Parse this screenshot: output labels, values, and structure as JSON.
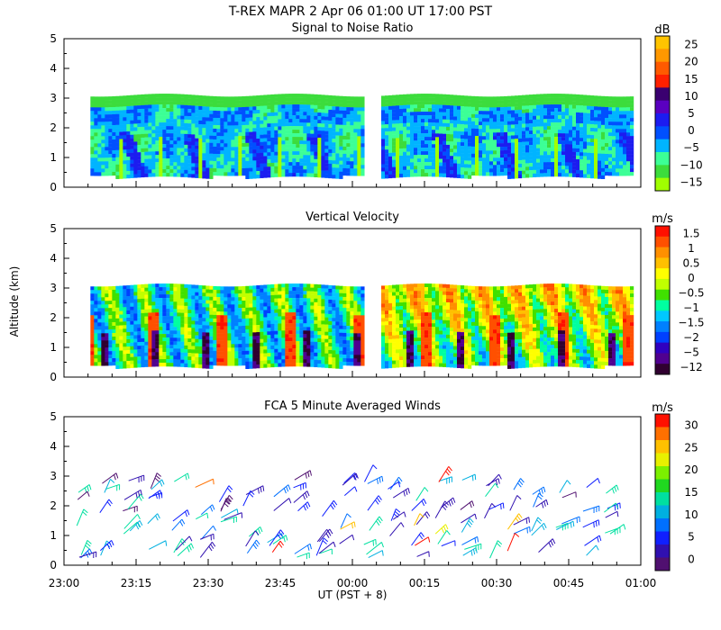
{
  "figure": {
    "title": "T-REX   MAPR   2 Apr 06   01:00 UT   17:00   PST",
    "xlabel": "UT  (PST + 8)",
    "ylabel": "Altitude (km)",
    "x_ticks": [
      "23:00",
      "23:15",
      "23:30",
      "23:45",
      "00:00",
      "00:15",
      "00:30",
      "00:45",
      "01:00"
    ]
  },
  "chart_data": [
    {
      "type": "heatmap",
      "title": "Signal to Noise Ratio",
      "units": "dB",
      "xlim_minutes": [
        0,
        120
      ],
      "ylim": [
        0,
        5
      ],
      "y_ticks": [
        "0",
        "1",
        "2",
        "3",
        "4",
        "5"
      ],
      "data_gap_minutes": [
        62,
        66
      ],
      "data_segments_minutes": [
        [
          5.5,
          62
        ],
        [
          66,
          118
        ]
      ],
      "top_of_data_km": 3.1,
      "bottom_of_data_km": 0.4,
      "colorbar": {
        "labels": [
          "25",
          "20",
          "15",
          "10",
          "5",
          "0",
          "−5",
          "−10",
          "−15"
        ],
        "colors": [
          "#ffc400",
          "#ff9800",
          "#ff5a00",
          "#ff2000",
          "#3a0070",
          "#5a00c0",
          "#1c1cf0",
          "#0050ff",
          "#00b4ff",
          "#3cff96",
          "#3cdc3c",
          "#a0ff00"
        ]
      }
    },
    {
      "type": "heatmap",
      "title": "Vertical Velocity",
      "units": "m/s",
      "xlim_minutes": [
        0,
        120
      ],
      "ylim": [
        0,
        5
      ],
      "y_ticks": [
        "0",
        "1",
        "2",
        "3",
        "4",
        "5"
      ],
      "data_gap_minutes": [
        62,
        66
      ],
      "data_segments_minutes": [
        [
          5.5,
          62
        ],
        [
          66,
          118
        ]
      ],
      "top_of_data_km": 3.1,
      "bottom_of_data_km": 0.4,
      "colorbar": {
        "labels": [
          "1.5",
          "1",
          "0.5",
          "0",
          "−0.5",
          "−1",
          "−1.5",
          "−2",
          "−5",
          "−12"
        ],
        "colors": [
          "#ff1000",
          "#ff5000",
          "#ff9000",
          "#ffc000",
          "#ffff00",
          "#c0ff00",
          "#40e000",
          "#00ffa0",
          "#00c8ff",
          "#0080ff",
          "#0040ff",
          "#3000c0",
          "#500090",
          "#300030"
        ]
      }
    },
    {
      "type": "scatter",
      "title": "FCA 5 Minute Averaged Winds",
      "units": "m/s",
      "xlim_minutes": [
        0,
        120
      ],
      "ylim": [
        0,
        5
      ],
      "y_ticks": [
        "0",
        "1",
        "2",
        "3",
        "4",
        "5"
      ],
      "colorbar": {
        "labels": [
          "30",
          "25",
          "20",
          "15",
          "10",
          "5",
          "0"
        ],
        "colors": [
          "#ff1000",
          "#ff7000",
          "#ffc000",
          "#e8f000",
          "#7cf000",
          "#20d820",
          "#00e0a0",
          "#00b0e0",
          "#0070ff",
          "#1020ff",
          "#3010b0",
          "#501070"
        ]
      }
    }
  ]
}
